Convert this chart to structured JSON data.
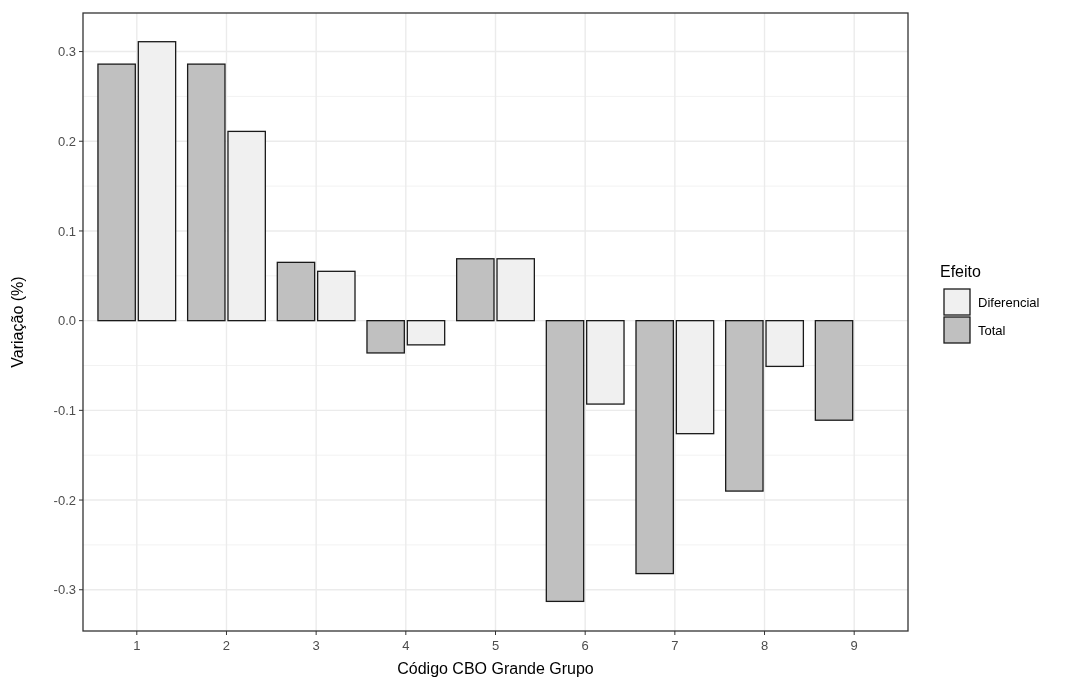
{
  "chart_data": {
    "type": "bar",
    "xlabel": "Código CBO Grande Grupo",
    "ylabel": "Variação (%)",
    "legend_title": "Efeito",
    "categories": [
      "1",
      "2",
      "3",
      "4",
      "5",
      "6",
      "7",
      "8",
      "9"
    ],
    "series": [
      {
        "name": "Total",
        "color": "#c0c0c0",
        "values": [
          0.286,
          0.286,
          0.065,
          -0.036,
          0.069,
          -0.313,
          -0.282,
          -0.19,
          -0.111
        ]
      },
      {
        "name": "Diferencial",
        "color": "#f0f0f0",
        "values": [
          0.311,
          0.211,
          0.055,
          -0.027,
          0.069,
          -0.093,
          -0.126,
          -0.051,
          0
        ]
      }
    ],
    "ylim": [
      -0.346,
      0.343
    ],
    "yticks": [
      {
        "value": -0.3,
        "label": "-0.3"
      },
      {
        "value": -0.2,
        "label": "-0.2"
      },
      {
        "value": -0.1,
        "label": "-0.1"
      },
      {
        "value": 0,
        "label": "0.0"
      },
      {
        "value": 0.1,
        "label": "0.1"
      },
      {
        "value": 0.2,
        "label": "0.2"
      },
      {
        "value": 0.3,
        "label": "0.3"
      }
    ],
    "grid": true,
    "legend": "right"
  }
}
